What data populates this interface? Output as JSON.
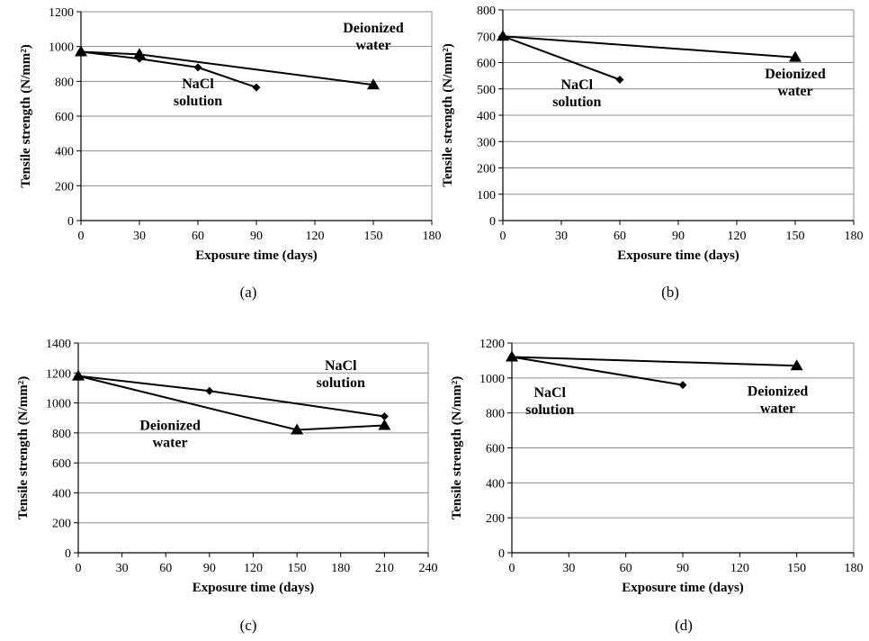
{
  "figure": {
    "panels": [
      {
        "caption": "(a)"
      },
      {
        "caption": "(b)"
      },
      {
        "caption": "(c)"
      },
      {
        "caption": "(d)"
      }
    ]
  },
  "chart_data": [
    {
      "type": "line",
      "caption": "(a)",
      "xlabel": "Exposure time (days)",
      "ylabel": "Tensile strength (N/mm²)",
      "xlim": [
        0,
        180
      ],
      "ylim": [
        0,
        1200
      ],
      "xticks": [
        0,
        30,
        60,
        90,
        120,
        150,
        180
      ],
      "yticks": [
        0,
        200,
        400,
        600,
        800,
        1000,
        1200
      ],
      "grid": "horizontal",
      "series": [
        {
          "name": "NaCl solution",
          "marker": "diamond",
          "x": [
            0,
            30,
            60,
            90
          ],
          "y": [
            970,
            930,
            880,
            765
          ]
        },
        {
          "name": "Deionized water",
          "marker": "triangle",
          "x": [
            0,
            30,
            150
          ],
          "y": [
            970,
            955,
            780
          ]
        }
      ],
      "annotations": [
        {
          "lines": [
            "Deionized",
            "water"
          ],
          "x": 150,
          "y": 1080
        },
        {
          "lines": [
            "NaCl",
            "solution"
          ],
          "x": 60,
          "y": 760
        }
      ]
    },
    {
      "type": "line",
      "caption": "(b)",
      "xlabel": "Exposure time (days)",
      "ylabel": "Tensile strength (N/mm²)",
      "xlim": [
        0,
        180
      ],
      "ylim": [
        0,
        800
      ],
      "xticks": [
        0,
        30,
        60,
        90,
        120,
        150,
        180
      ],
      "yticks": [
        0,
        100,
        200,
        300,
        400,
        500,
        600,
        700,
        800
      ],
      "grid": "horizontal",
      "series": [
        {
          "name": "NaCl solution",
          "marker": "diamond",
          "x": [
            0,
            60
          ],
          "y": [
            700,
            535
          ]
        },
        {
          "name": "Deionized water",
          "marker": "triangle",
          "x": [
            0,
            150
          ],
          "y": [
            700,
            620
          ]
        }
      ],
      "annotations": [
        {
          "lines": [
            "NaCl",
            "solution"
          ],
          "x": 38,
          "y": 500
        },
        {
          "lines": [
            "Deionized",
            "water"
          ],
          "x": 150,
          "y": 540
        }
      ]
    },
    {
      "type": "line",
      "caption": "(c)",
      "xlabel": "Exposure time (days)",
      "ylabel": "Tensile strength (N/mm²)",
      "xlim": [
        0,
        240
      ],
      "ylim": [
        0,
        1400
      ],
      "xticks": [
        0,
        30,
        60,
        90,
        120,
        150,
        180,
        210,
        240
      ],
      "yticks": [
        0,
        200,
        400,
        600,
        800,
        1000,
        1200,
        1400
      ],
      "grid": "horizontal",
      "series": [
        {
          "name": "NaCl solution",
          "marker": "diamond",
          "x": [
            0,
            90,
            210
          ],
          "y": [
            1180,
            1080,
            910
          ]
        },
        {
          "name": "Deionized water",
          "marker": "triangle",
          "x": [
            0,
            150,
            210
          ],
          "y": [
            1180,
            820,
            850
          ]
        }
      ],
      "annotations": [
        {
          "lines": [
            "NaCl",
            "solution"
          ],
          "x": 180,
          "y": 1220
        },
        {
          "lines": [
            "Deionized",
            "water"
          ],
          "x": 63,
          "y": 820
        }
      ]
    },
    {
      "type": "line",
      "caption": "(d)",
      "xlabel": "Exposure time (days)",
      "ylabel": "Tensile strength (N/mm²)",
      "xlim": [
        0,
        180
      ],
      "ylim": [
        0,
        1200
      ],
      "xticks": [
        0,
        30,
        60,
        90,
        120,
        150,
        180
      ],
      "yticks": [
        0,
        200,
        400,
        600,
        800,
        1000,
        1200
      ],
      "grid": "horizontal",
      "series": [
        {
          "name": "NaCl solution",
          "marker": "diamond",
          "x": [
            0,
            90
          ],
          "y": [
            1120,
            960
          ]
        },
        {
          "name": "Deionized water",
          "marker": "triangle",
          "x": [
            0,
            150
          ],
          "y": [
            1120,
            1070
          ]
        }
      ],
      "annotations": [
        {
          "lines": [
            "NaCl",
            "solution"
          ],
          "x": 20,
          "y": 890
        },
        {
          "lines": [
            "Deionized",
            "water"
          ],
          "x": 140,
          "y": 900
        }
      ]
    }
  ]
}
